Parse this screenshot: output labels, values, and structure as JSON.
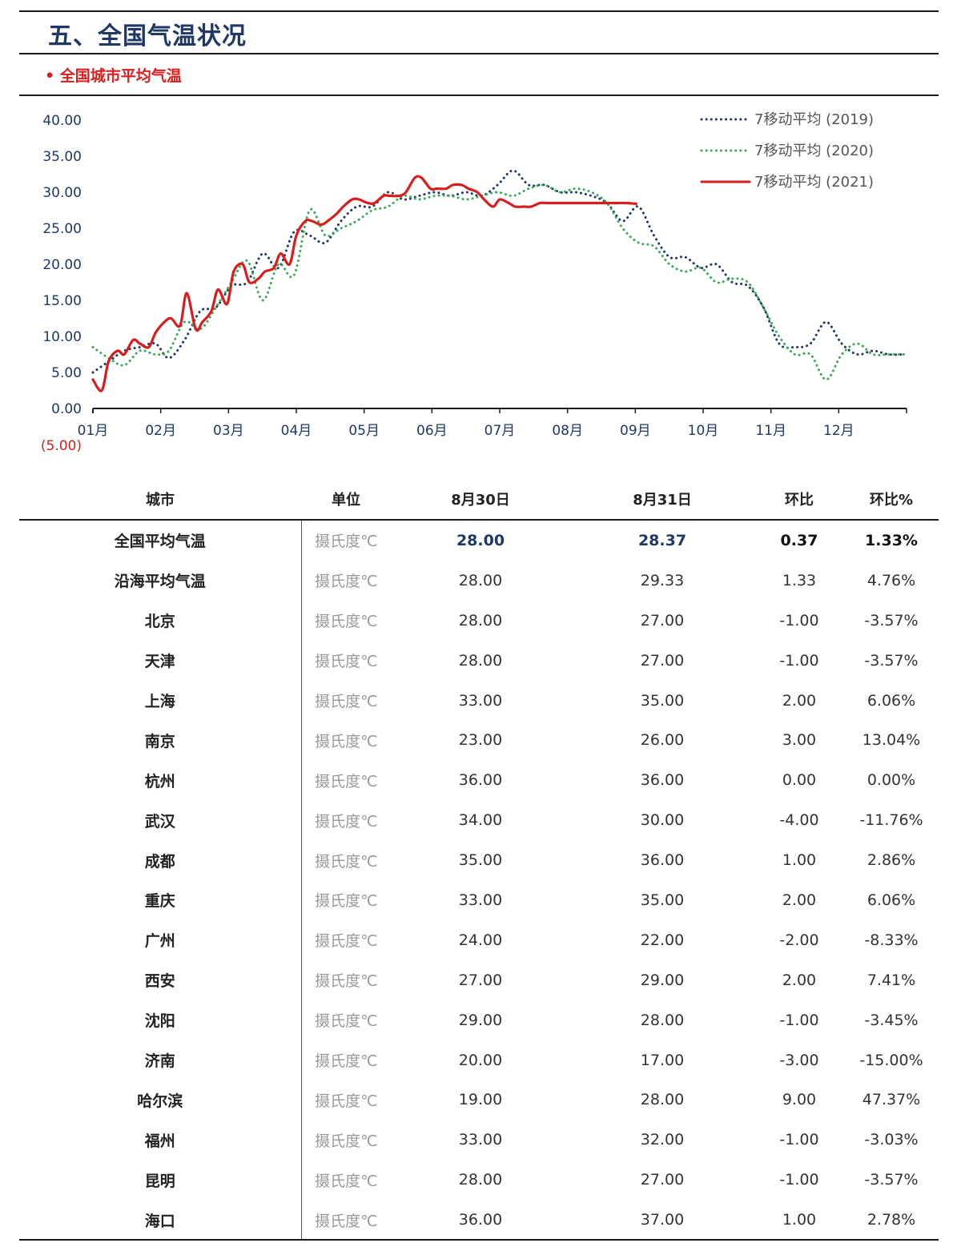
{
  "header": {
    "title": "五、全国气温状况",
    "subtitle": "• 全国城市平均气温"
  },
  "chart_data": {
    "type": "line",
    "ylim": [
      0,
      40
    ],
    "yticks": [
      "40.00",
      "35.00",
      "30.00",
      "25.00",
      "20.00",
      "15.00",
      "10.00",
      "5.00",
      "0.00"
    ],
    "y_extra_label": "(5.00)",
    "x_tick_labels": [
      "01月",
      "02月",
      "03月",
      "04月",
      "05月",
      "06月",
      "07月",
      "08月",
      "09月",
      "10月",
      "11月",
      "12月"
    ],
    "legend_position": "top-right",
    "colors": {
      "s2019": "#1f3864",
      "s2020": "#3aaa5a",
      "s2021": "#d81e1e",
      "neg_label": "#d81e1e",
      "axis_text": "#1f3864"
    },
    "series": [
      {
        "name": "7移动平均 (2019)",
        "style": "dotted",
        "x": [
          1,
          8,
          15,
          22,
          29,
          35,
          42,
          49,
          56,
          63,
          70,
          77,
          84,
          91,
          98,
          105,
          112,
          119,
          126,
          133,
          140,
          147,
          154,
          161,
          168,
          175,
          182,
          189,
          196,
          203,
          210,
          217,
          224,
          231,
          238,
          245,
          252,
          259,
          266,
          273,
          280,
          287,
          294,
          301,
          308,
          315,
          322,
          329,
          336,
          343,
          350,
          357,
          364
        ],
        "y": [
          5,
          6.5,
          8,
          8.5,
          9,
          7,
          9.5,
          13.5,
          14,
          17,
          17.5,
          21.5,
          19.5,
          24.5,
          24,
          23,
          26,
          28,
          28,
          30,
          29,
          29.5,
          30,
          29.5,
          30,
          29.5,
          31,
          33,
          31,
          31,
          30,
          30,
          29.5,
          28.5,
          26,
          28,
          24,
          21,
          21,
          19.5,
          20,
          17.5,
          17,
          14,
          9,
          8.5,
          9,
          12,
          9,
          7.5,
          8,
          7.5,
          7.5
        ]
      },
      {
        "name": "7移动平均 (2020)",
        "style": "dotted",
        "x": [
          1,
          8,
          15,
          22,
          29,
          35,
          42,
          49,
          56,
          63,
          70,
          77,
          84,
          91,
          98,
          105,
          112,
          119,
          126,
          133,
          140,
          147,
          154,
          161,
          168,
          175,
          182,
          189,
          196,
          203,
          210,
          217,
          224,
          231,
          238,
          245,
          252,
          259,
          266,
          273,
          280,
          287,
          294,
          301,
          308,
          315,
          322,
          329,
          336,
          343,
          350,
          357,
          364
        ],
        "y": [
          8.5,
          7,
          6,
          8,
          7.5,
          8,
          12,
          11,
          14,
          17.5,
          20.5,
          15,
          20,
          18.5,
          27.5,
          24,
          25,
          26,
          27.5,
          28,
          29.5,
          29,
          29.5,
          29.5,
          29,
          29.5,
          30,
          29.5,
          30.5,
          31,
          30,
          30.5,
          30,
          28.5,
          25,
          23,
          22.5,
          20,
          19,
          19.5,
          17.5,
          18,
          17.5,
          14,
          10,
          7.5,
          7.5,
          4,
          7.5,
          9,
          7.5,
          7.5,
          7.5
        ]
      },
      {
        "name": "7移动平均 (2021)",
        "style": "solid",
        "x": [
          1,
          5,
          8,
          12,
          15,
          19,
          22,
          26,
          29,
          33,
          36,
          40,
          43,
          47,
          50,
          54,
          57,
          61,
          64,
          68,
          71,
          75,
          78,
          82,
          85,
          89,
          92,
          96,
          99,
          103,
          106,
          110,
          113,
          117,
          120,
          124,
          127,
          131,
          134,
          138,
          141,
          145,
          148,
          152,
          155,
          159,
          162,
          166,
          169,
          173,
          176,
          180,
          183,
          187,
          190,
          194,
          197,
          201,
          204,
          208,
          211,
          215,
          218,
          222,
          225,
          229,
          232,
          236,
          240,
          244
        ],
        "y": [
          4,
          2.5,
          6.5,
          8,
          7.5,
          9.5,
          9,
          8.5,
          10.5,
          12,
          12.5,
          11.5,
          16,
          11,
          12,
          13.5,
          16.5,
          14.5,
          19,
          20,
          17.5,
          18,
          19,
          19.5,
          21.5,
          20,
          24,
          26,
          26,
          25.5,
          26,
          27,
          28,
          29,
          29,
          28.5,
          28.5,
          29.5,
          29.5,
          29.5,
          30,
          32,
          32,
          30.5,
          30.5,
          30.5,
          31,
          31,
          30.5,
          30,
          29,
          28,
          29,
          28.5,
          28,
          28,
          28,
          28.5,
          28.5,
          28.5,
          28.5,
          28.5,
          28.5,
          28.5,
          28.5,
          28.5,
          28.5,
          28.5,
          28.5,
          28.4
        ]
      }
    ]
  },
  "table": {
    "headers": [
      "城市",
      "单位",
      "8月30日",
      "8月31日",
      "环比",
      "环比%"
    ],
    "rows": [
      [
        "全国平均气温",
        "摄氏度℃",
        "28.00",
        "28.37",
        "0.37",
        "1.33%"
      ],
      [
        "沿海平均气温",
        "摄氏度℃",
        "28.00",
        "29.33",
        "1.33",
        "4.76%"
      ],
      [
        "北京",
        "摄氏度℃",
        "28.00",
        "27.00",
        "-1.00",
        "-3.57%"
      ],
      [
        "天津",
        "摄氏度℃",
        "28.00",
        "27.00",
        "-1.00",
        "-3.57%"
      ],
      [
        "上海",
        "摄氏度℃",
        "33.00",
        "35.00",
        "2.00",
        "6.06%"
      ],
      [
        "南京",
        "摄氏度℃",
        "23.00",
        "26.00",
        "3.00",
        "13.04%"
      ],
      [
        "杭州",
        "摄氏度℃",
        "36.00",
        "36.00",
        "0.00",
        "0.00%"
      ],
      [
        "武汉",
        "摄氏度℃",
        "34.00",
        "30.00",
        "-4.00",
        "-11.76%"
      ],
      [
        "成都",
        "摄氏度℃",
        "35.00",
        "36.00",
        "1.00",
        "2.86%"
      ],
      [
        "重庆",
        "摄氏度℃",
        "33.00",
        "35.00",
        "2.00",
        "6.06%"
      ],
      [
        "广州",
        "摄氏度℃",
        "24.00",
        "22.00",
        "-2.00",
        "-8.33%"
      ],
      [
        "西安",
        "摄氏度℃",
        "27.00",
        "29.00",
        "2.00",
        "7.41%"
      ],
      [
        "沈阳",
        "摄氏度℃",
        "29.00",
        "28.00",
        "-1.00",
        "-3.45%"
      ],
      [
        "济南",
        "摄氏度℃",
        "20.00",
        "17.00",
        "-3.00",
        "-15.00%"
      ],
      [
        "哈尔滨",
        "摄氏度℃",
        "19.00",
        "28.00",
        "9.00",
        "47.37%"
      ],
      [
        "福州",
        "摄氏度℃",
        "33.00",
        "32.00",
        "-1.00",
        "-3.03%"
      ],
      [
        "昆明",
        "摄氏度℃",
        "28.00",
        "27.00",
        "-1.00",
        "-3.57%"
      ],
      [
        "海口",
        "摄氏度℃",
        "36.00",
        "37.00",
        "1.00",
        "2.78%"
      ]
    ]
  }
}
